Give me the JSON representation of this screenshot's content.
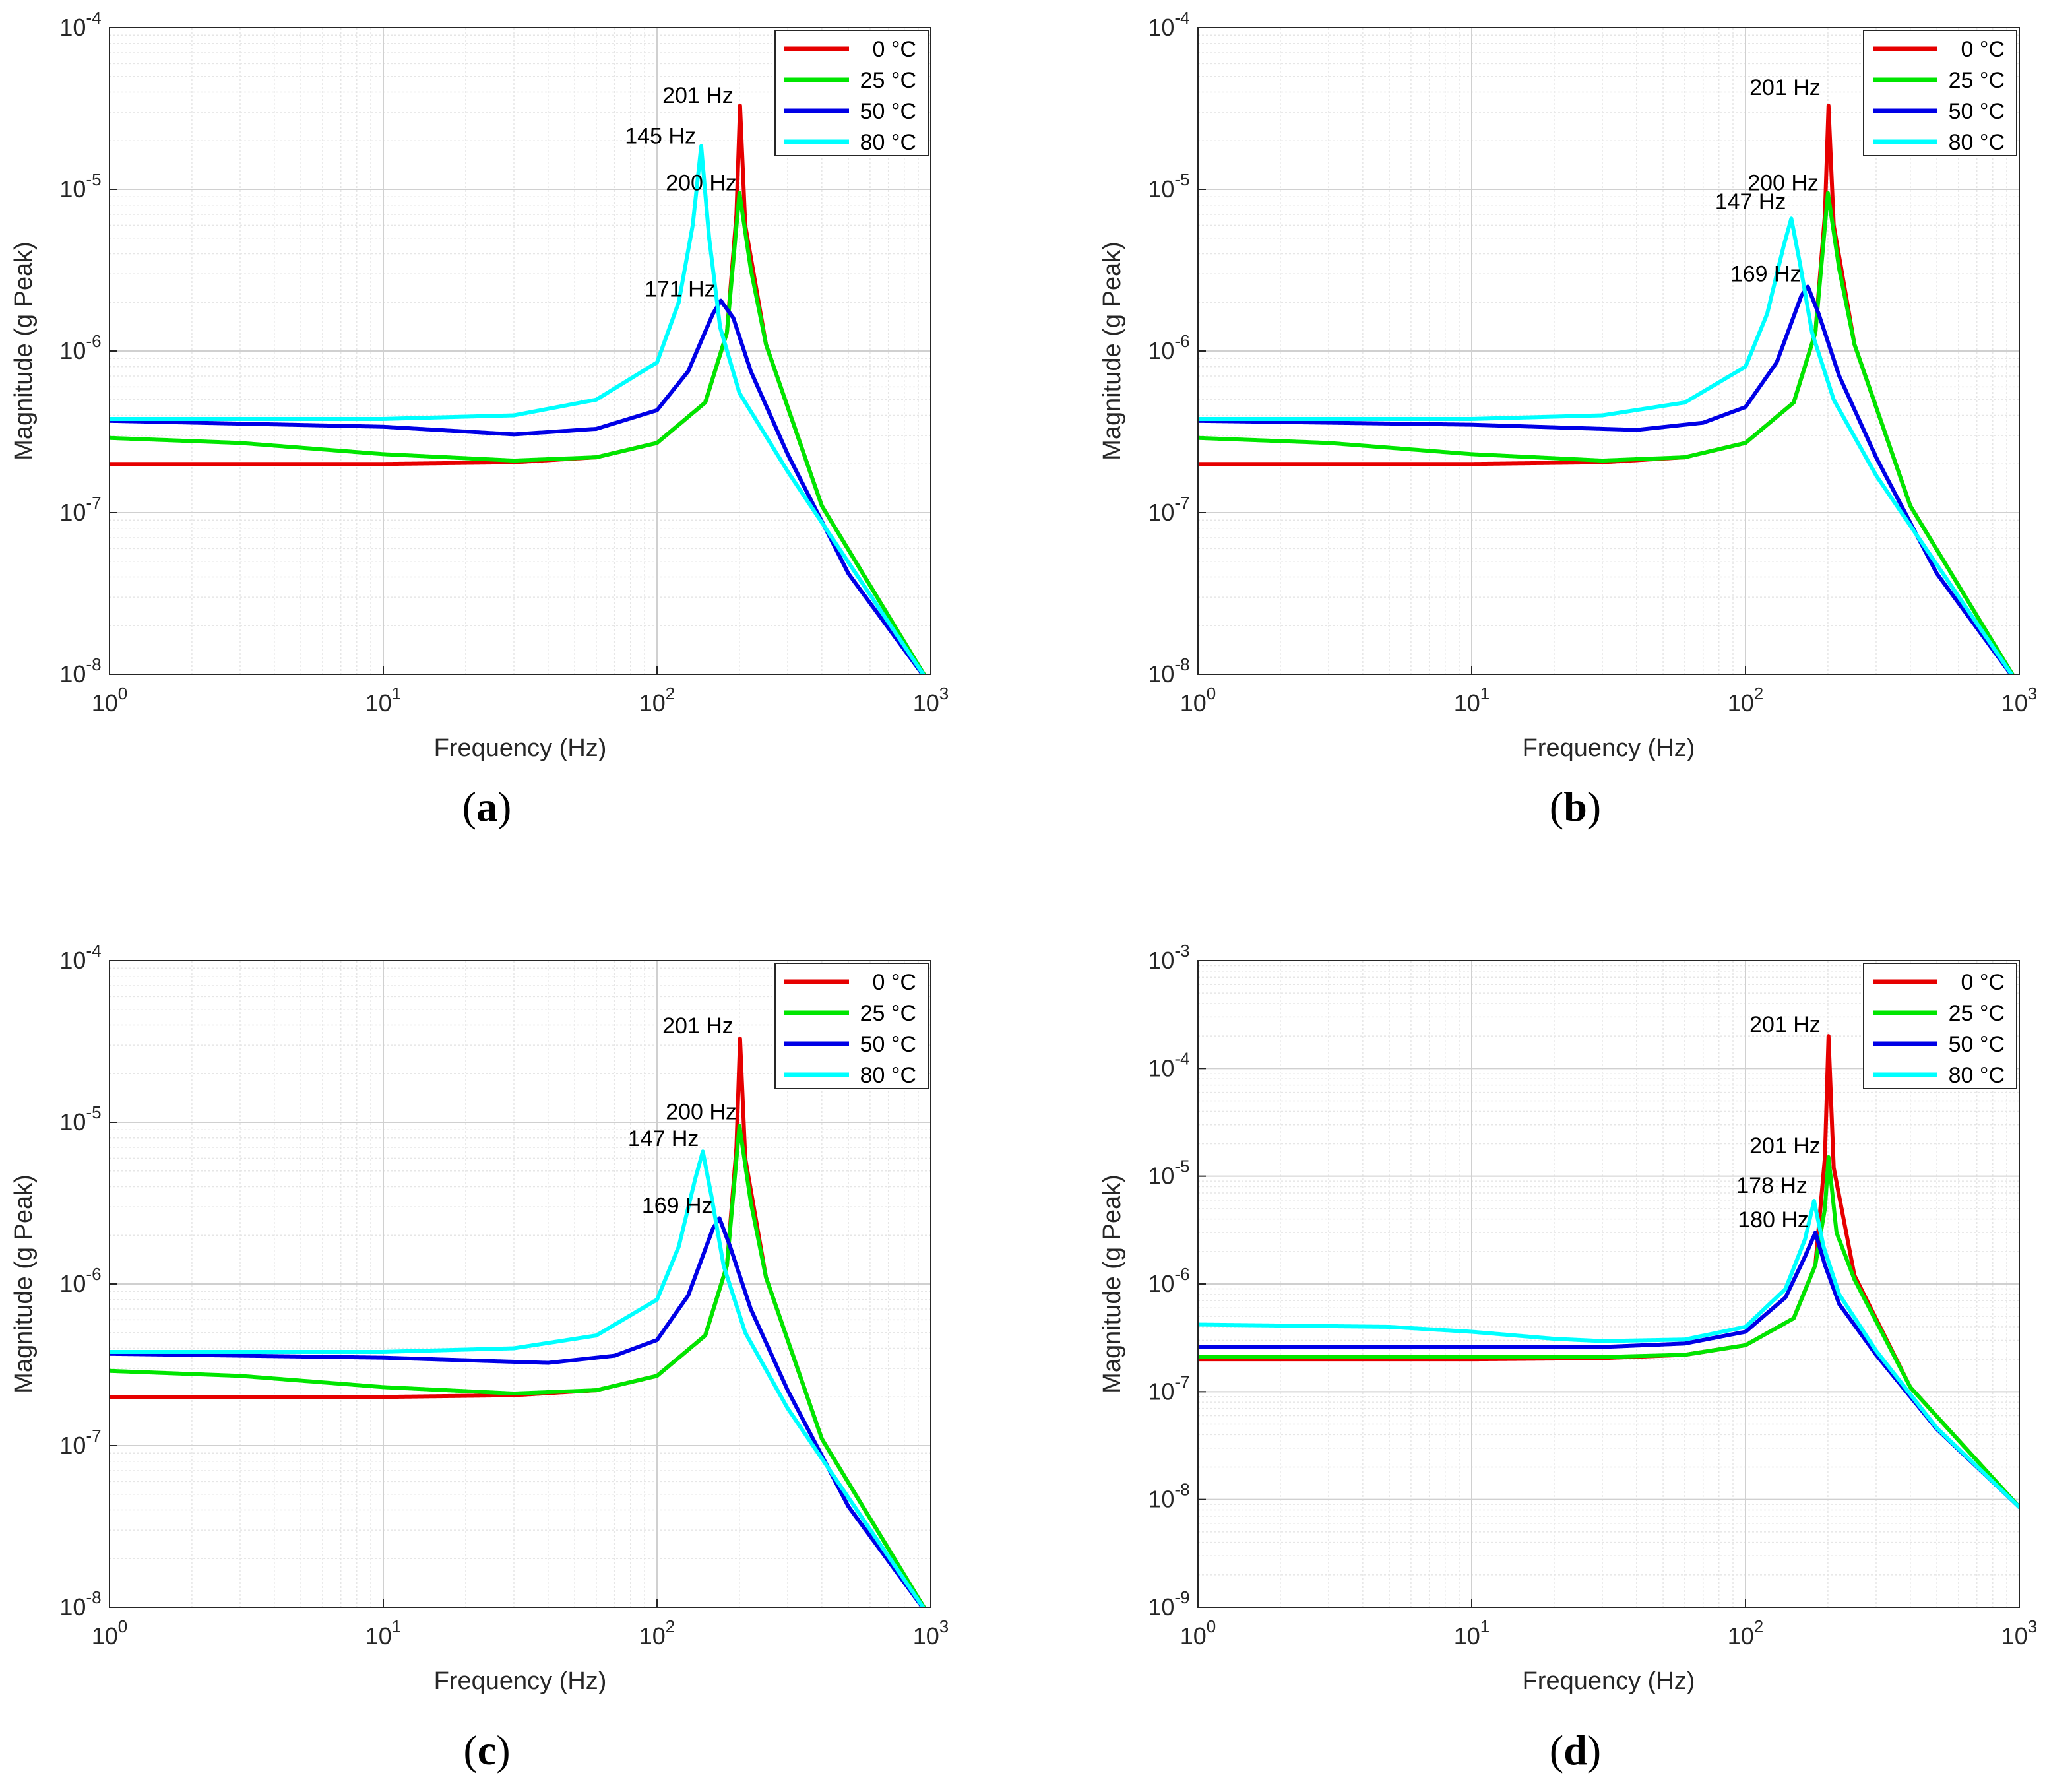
{
  "figure": {
    "layout": "2x2"
  },
  "series_colors": {
    "0 °C": "#e60000",
    "25 °C": "#00e600",
    "50 °C": "#0000e6",
    "80 °C": "#00ffff"
  },
  "chart_data": [
    {
      "type": "line",
      "caption_letter": "a",
      "xlabel": "Frequency (Hz)",
      "ylabel": "Magnitude (g Peak)",
      "xscale": "log",
      "yscale": "log",
      "xlim": [
        1,
        1000
      ],
      "ylim": [
        1e-08,
        0.0001
      ],
      "xticks": [
        {
          "base": "10",
          "exp": "0"
        },
        {
          "base": "10",
          "exp": "1"
        },
        {
          "base": "10",
          "exp": "2"
        },
        {
          "base": "10",
          "exp": "3"
        }
      ],
      "yticks": [
        {
          "base": "10",
          "exp": "-8"
        },
        {
          "base": "10",
          "exp": "-7"
        },
        {
          "base": "10",
          "exp": "-6"
        },
        {
          "base": "10",
          "exp": "-5"
        },
        {
          "base": "10",
          "exp": "-4"
        }
      ],
      "grid": true,
      "legend_position": "top-right",
      "series": [
        {
          "name": "0 °C",
          "color": "#e60000",
          "x": [
            1,
            10,
            30,
            60,
            100,
            150,
            180,
            195,
            201,
            210,
            250,
            400,
            1000
          ],
          "y": [
            2e-07,
            2e-07,
            2.05e-07,
            2.2e-07,
            2.7e-07,
            4.8e-07,
            1.3e-06,
            7e-06,
            3.3e-05,
            6e-06,
            1.1e-06,
            1.1e-07,
            8.5e-09
          ]
        },
        {
          "name": "25 °C",
          "color": "#00e600",
          "x": [
            1,
            3,
            10,
            30,
            60,
            100,
            150,
            180,
            200,
            220,
            250,
            400,
            1000
          ],
          "y": [
            2.9e-07,
            2.7e-07,
            2.3e-07,
            2.1e-07,
            2.2e-07,
            2.7e-07,
            4.8e-07,
            1.3e-06,
            9.5e-06,
            3.2e-06,
            1.1e-06,
            1.1e-07,
            8.5e-09
          ]
        },
        {
          "name": "50 °C",
          "color": "#0000e6",
          "x": [
            1,
            10,
            30,
            60,
            100,
            130,
            160,
            171,
            190,
            220,
            300,
            500,
            1000
          ],
          "y": [
            3.7e-07,
            3.4e-07,
            3.05e-07,
            3.3e-07,
            4.3e-07,
            7.5e-07,
            1.7e-06,
            2.05e-06,
            1.6e-06,
            7.5e-07,
            2.3e-07,
            4.2e-08,
            8.5e-09
          ]
        },
        {
          "name": "80 °C",
          "color": "#00ffff",
          "x": [
            1,
            10,
            30,
            60,
            100,
            120,
            135,
            145,
            155,
            170,
            200,
            300,
            1000
          ],
          "y": [
            3.8e-07,
            3.8e-07,
            4e-07,
            5e-07,
            8.5e-07,
            2e-06,
            6e-06,
            1.85e-05,
            5e-06,
            1.4e-06,
            5.5e-07,
            1.8e-07,
            8.5e-09
          ]
        }
      ],
      "annotations": [
        {
          "text": "201 Hz",
          "x": 201,
          "y": 3.3e-05,
          "dx": -10,
          "dy": -4
        },
        {
          "text": "145 Hz",
          "x": 145,
          "y": 1.85e-05,
          "dx": -8,
          "dy": -4
        },
        {
          "text": "200 Hz",
          "x": 200,
          "y": 9.5e-06,
          "dx": -4,
          "dy": -4
        },
        {
          "text": "171 Hz",
          "x": 171,
          "y": 2.05e-06,
          "dx": -8,
          "dy": -6
        }
      ]
    },
    {
      "type": "line",
      "caption_letter": "b",
      "xlabel": "Frequency (Hz)",
      "ylabel": "Magnitude (g Peak)",
      "xscale": "log",
      "yscale": "log",
      "xlim": [
        1,
        1000
      ],
      "ylim": [
        1e-08,
        0.0001
      ],
      "xticks": [
        {
          "base": "10",
          "exp": "0"
        },
        {
          "base": "10",
          "exp": "1"
        },
        {
          "base": "10",
          "exp": "2"
        },
        {
          "base": "10",
          "exp": "3"
        }
      ],
      "yticks": [
        {
          "base": "10",
          "exp": "-8"
        },
        {
          "base": "10",
          "exp": "-7"
        },
        {
          "base": "10",
          "exp": "-6"
        },
        {
          "base": "10",
          "exp": "-5"
        },
        {
          "base": "10",
          "exp": "-4"
        }
      ],
      "grid": true,
      "legend_position": "top-right",
      "series": [
        {
          "name": "0 °C",
          "color": "#e60000",
          "x": [
            1,
            10,
            30,
            60,
            100,
            150,
            180,
            195,
            201,
            210,
            250,
            400,
            1000
          ],
          "y": [
            2e-07,
            2e-07,
            2.05e-07,
            2.2e-07,
            2.7e-07,
            4.8e-07,
            1.3e-06,
            7e-06,
            3.3e-05,
            6e-06,
            1.1e-06,
            1.1e-07,
            8.5e-09
          ]
        },
        {
          "name": "25 °C",
          "color": "#00e600",
          "x": [
            1,
            3,
            10,
            30,
            60,
            100,
            150,
            180,
            200,
            220,
            250,
            400,
            1000
          ],
          "y": [
            2.9e-07,
            2.7e-07,
            2.3e-07,
            2.1e-07,
            2.2e-07,
            2.7e-07,
            4.8e-07,
            1.3e-06,
            9.5e-06,
            3.2e-06,
            1.1e-06,
            1.1e-07,
            8.5e-09
          ]
        },
        {
          "name": "50 °C",
          "color": "#0000e6",
          "x": [
            1,
            10,
            40,
            70,
            100,
            130,
            160,
            169,
            185,
            220,
            300,
            500,
            1000
          ],
          "y": [
            3.7e-07,
            3.5e-07,
            3.25e-07,
            3.6e-07,
            4.5e-07,
            8.5e-07,
            2.2e-06,
            2.5e-06,
            1.7e-06,
            7e-07,
            2.2e-07,
            4.2e-08,
            8.5e-09
          ]
        },
        {
          "name": "80 °C",
          "color": "#00ffff",
          "x": [
            1,
            10,
            30,
            60,
            100,
            120,
            138,
            147,
            158,
            175,
            210,
            300,
            1000
          ],
          "y": [
            3.8e-07,
            3.8e-07,
            4e-07,
            4.8e-07,
            8e-07,
            1.7e-06,
            4.5e-06,
            6.6e-06,
            3.5e-06,
            1.3e-06,
            5e-07,
            1.7e-07,
            8.5e-09
          ]
        }
      ],
      "annotations": [
        {
          "text": "201 Hz",
          "x": 201,
          "y": 3.3e-05,
          "dx": -12,
          "dy": -16
        },
        {
          "text": "200 Hz",
          "x": 200,
          "y": 9.5e-06,
          "dx": -14,
          "dy": -4
        },
        {
          "text": "147 Hz",
          "x": 147,
          "y": 6.6e-06,
          "dx": -8,
          "dy": -14
        },
        {
          "text": "169 Hz",
          "x": 169,
          "y": 2.5e-06,
          "dx": -10,
          "dy": -8
        }
      ]
    },
    {
      "type": "line",
      "caption_letter": "c",
      "xlabel": "Frequency (Hz)",
      "ylabel": "Magnitude (g Peak)",
      "xscale": "log",
      "yscale": "log",
      "xlim": [
        1,
        1000
      ],
      "ylim": [
        1e-08,
        0.0001
      ],
      "xticks": [
        {
          "base": "10",
          "exp": "0"
        },
        {
          "base": "10",
          "exp": "1"
        },
        {
          "base": "10",
          "exp": "2"
        },
        {
          "base": "10",
          "exp": "3"
        }
      ],
      "yticks": [
        {
          "base": "10",
          "exp": "-8"
        },
        {
          "base": "10",
          "exp": "-7"
        },
        {
          "base": "10",
          "exp": "-6"
        },
        {
          "base": "10",
          "exp": "-5"
        },
        {
          "base": "10",
          "exp": "-4"
        }
      ],
      "grid": true,
      "legend_position": "top-right",
      "series": [
        {
          "name": "0 °C",
          "color": "#e60000",
          "x": [
            1,
            10,
            30,
            60,
            100,
            150,
            180,
            195,
            201,
            210,
            250,
            400,
            1000
          ],
          "y": [
            2e-07,
            2e-07,
            2.05e-07,
            2.2e-07,
            2.7e-07,
            4.8e-07,
            1.3e-06,
            7e-06,
            3.3e-05,
            6e-06,
            1.1e-06,
            1.1e-07,
            8.5e-09
          ]
        },
        {
          "name": "25 °C",
          "color": "#00e600",
          "x": [
            1,
            3,
            10,
            30,
            60,
            100,
            150,
            180,
            200,
            220,
            250,
            400,
            1000
          ],
          "y": [
            2.9e-07,
            2.7e-07,
            2.3e-07,
            2.1e-07,
            2.2e-07,
            2.7e-07,
            4.8e-07,
            1.3e-06,
            9.5e-06,
            3.2e-06,
            1.1e-06,
            1.1e-07,
            8.5e-09
          ]
        },
        {
          "name": "50 °C",
          "color": "#0000e6",
          "x": [
            1,
            10,
            40,
            70,
            100,
            130,
            160,
            169,
            185,
            220,
            300,
            500,
            1000
          ],
          "y": [
            3.7e-07,
            3.5e-07,
            3.25e-07,
            3.6e-07,
            4.5e-07,
            8.5e-07,
            2.2e-06,
            2.55e-06,
            1.7e-06,
            7e-07,
            2.2e-07,
            4.2e-08,
            8.5e-09
          ]
        },
        {
          "name": "80 °C",
          "color": "#00ffff",
          "x": [
            1,
            10,
            30,
            60,
            100,
            120,
            138,
            147,
            158,
            175,
            210,
            300,
            1000
          ],
          "y": [
            3.8e-07,
            3.8e-07,
            4e-07,
            4.8e-07,
            8e-07,
            1.7e-06,
            4.5e-06,
            6.6e-06,
            3.5e-06,
            1.3e-06,
            5e-07,
            1.7e-07,
            8.5e-09
          ]
        }
      ],
      "annotations": [
        {
          "text": "201 Hz",
          "x": 201,
          "y": 3.3e-05,
          "dx": -10,
          "dy": -8
        },
        {
          "text": "200 Hz",
          "x": 200,
          "y": 9.5e-06,
          "dx": -4,
          "dy": -10
        },
        {
          "text": "147 Hz",
          "x": 147,
          "y": 6.6e-06,
          "dx": -6,
          "dy": -8
        },
        {
          "text": "169 Hz",
          "x": 169,
          "y": 2.55e-06,
          "dx": -10,
          "dy": -8
        }
      ]
    },
    {
      "type": "line",
      "caption_letter": "d",
      "xlabel": "Frequency (Hz)",
      "ylabel": "Magnitude (g Peak)",
      "xscale": "log",
      "yscale": "log",
      "xlim": [
        1,
        1000
      ],
      "ylim": [
        1e-09,
        0.001
      ],
      "xticks": [
        {
          "base": "10",
          "exp": "0"
        },
        {
          "base": "10",
          "exp": "1"
        },
        {
          "base": "10",
          "exp": "2"
        },
        {
          "base": "10",
          "exp": "3"
        }
      ],
      "yticks": [
        {
          "base": "10",
          "exp": "-9"
        },
        {
          "base": "10",
          "exp": "-8"
        },
        {
          "base": "10",
          "exp": "-7"
        },
        {
          "base": "10",
          "exp": "-6"
        },
        {
          "base": "10",
          "exp": "-5"
        },
        {
          "base": "10",
          "exp": "-4"
        },
        {
          "base": "10",
          "exp": "-3"
        }
      ],
      "grid": true,
      "legend_position": "top-right",
      "series": [
        {
          "name": "0 °C",
          "color": "#e60000",
          "x": [
            1,
            10,
            30,
            60,
            100,
            150,
            180,
            195,
            201,
            210,
            250,
            400,
            1000
          ],
          "y": [
            2e-07,
            2e-07,
            2.05e-07,
            2.2e-07,
            2.7e-07,
            4.8e-07,
            1.5e-06,
            1.5e-05,
            0.0002,
            1.2e-05,
            1.2e-06,
            1.1e-07,
            8.5e-09
          ]
        },
        {
          "name": "25 °C",
          "color": "#00e600",
          "x": [
            1,
            10,
            30,
            60,
            100,
            150,
            180,
            195,
            201,
            215,
            250,
            400,
            1000
          ],
          "y": [
            2.1e-07,
            2.1e-07,
            2.1e-07,
            2.2e-07,
            2.7e-07,
            4.8e-07,
            1.5e-06,
            5e-06,
            1.5e-05,
            3e-06,
            1.1e-06,
            1.1e-07,
            8.5e-09
          ]
        },
        {
          "name": "50 °C",
          "color": "#0000e6",
          "x": [
            1,
            10,
            30,
            60,
            100,
            140,
            165,
            180,
            195,
            220,
            300,
            500,
            1000
          ],
          "y": [
            2.6e-07,
            2.6e-07,
            2.6e-07,
            2.8e-07,
            3.6e-07,
            7.5e-07,
            1.8e-06,
            3e-06,
            1.5e-06,
            6.5e-07,
            2.2e-07,
            4.5e-08,
            8.5e-09
          ]
        },
        {
          "name": "80 °C",
          "color": "#00ffff",
          "x": [
            1,
            5,
            10,
            20,
            30,
            60,
            100,
            140,
            165,
            178,
            193,
            220,
            300,
            500,
            1000
          ],
          "y": [
            4.2e-07,
            4e-07,
            3.6e-07,
            3.1e-07,
            2.95e-07,
            3.05e-07,
            4e-07,
            9e-07,
            2.6e-06,
            5.9e-06,
            2.2e-06,
            8e-07,
            2.4e-07,
            4.6e-08,
            8.5e-09
          ]
        }
      ],
      "annotations": [
        {
          "text": "201 Hz",
          "x": 201,
          "y": 0.0002,
          "dx": -12,
          "dy": -6
        },
        {
          "text": "201 Hz",
          "x": 201,
          "y": 1.5e-05,
          "dx": -12,
          "dy": -6
        },
        {
          "text": "178 Hz",
          "x": 178,
          "y": 5.9e-06,
          "dx": -10,
          "dy": -12
        },
        {
          "text": "180 Hz",
          "x": 180,
          "y": 3e-06,
          "dx": -10,
          "dy": -8
        }
      ]
    }
  ]
}
